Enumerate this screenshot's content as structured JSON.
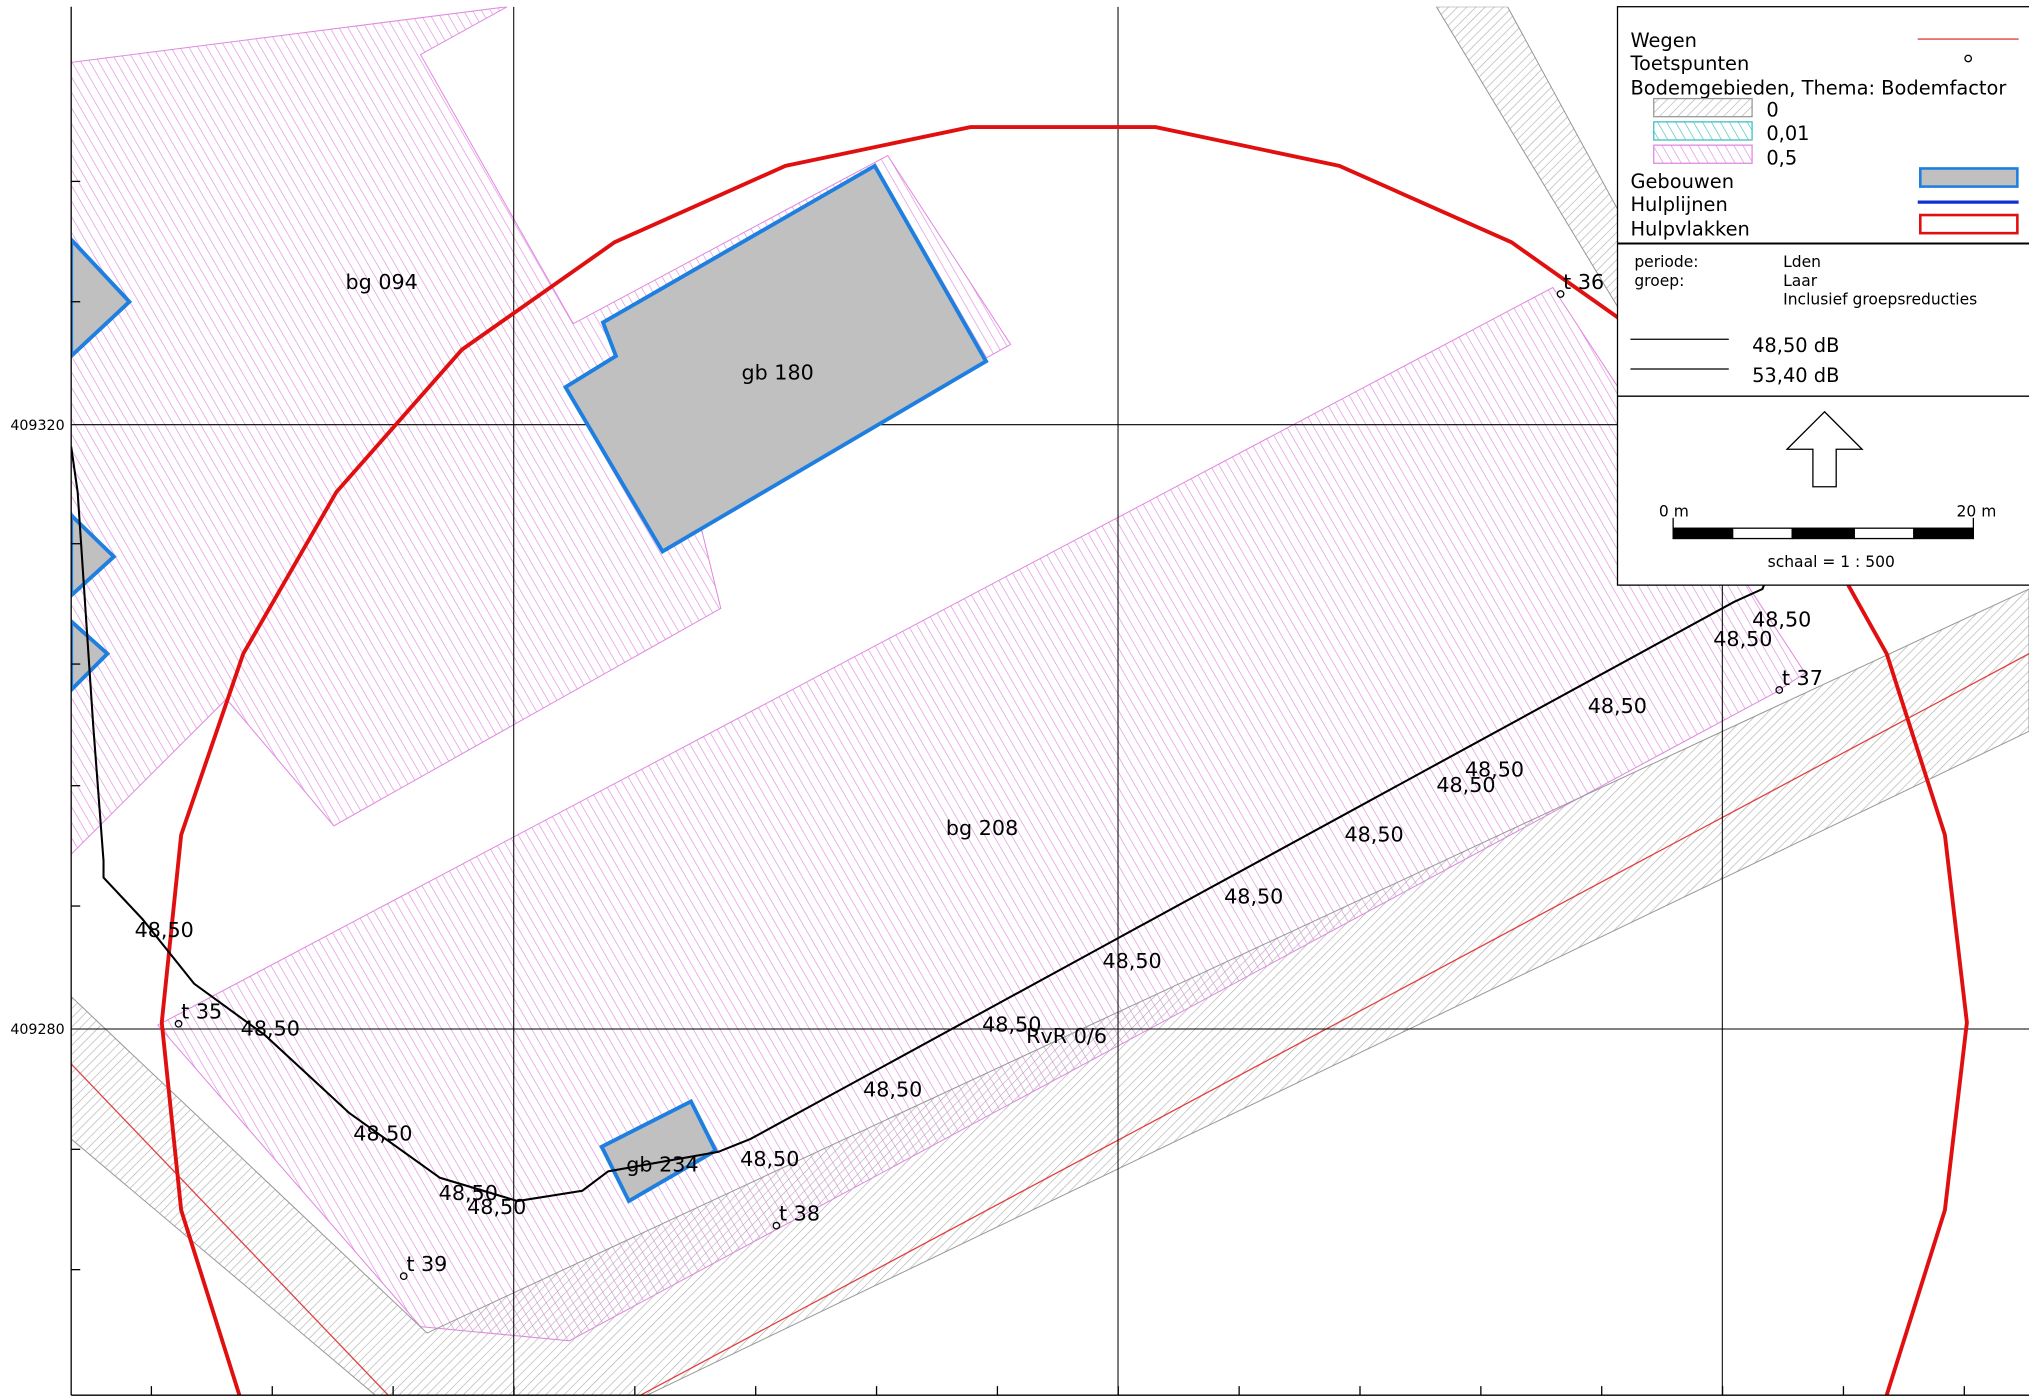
{
  "legend": {
    "items": [
      "Wegen",
      "Toetspunten",
      "Bodemgebieden, Thema: Bodemfactor",
      "0",
      "0,01",
      "0,5",
      "Gebouwen",
      "Hulplijnen",
      "Hulpvlakken"
    ]
  },
  "info": {
    "periode_label": "periode:",
    "periode": "Lden",
    "groep_label": "groep:",
    "groep": "Laar",
    "note": "Inclusief groepsreducties",
    "contours": [
      "48,50 dB",
      "53,40 dB"
    ]
  },
  "scale": {
    "start": "0 m",
    "end": "20 m",
    "text": "schaal = 1 : 500"
  },
  "axis": {
    "y_labels": [
      "409320",
      "409280"
    ]
  },
  "map": {
    "areas": [
      "bg 094",
      "bg 208"
    ],
    "buildings": [
      "gb 180",
      "gb 234"
    ],
    "points": [
      "t 35",
      "t 36",
      "t 37",
      "t 38",
      "t 39"
    ],
    "line_label": "RvR 0/6",
    "contour_labels": [
      "48,50",
      "48,50",
      "48,50",
      "48,50",
      "48,50",
      "48,50",
      "48,50",
      "48,50",
      "48,50",
      "48,50",
      "48,50",
      "48,50",
      "48,50",
      "48,50",
      "48,50",
      "48,50"
    ]
  }
}
